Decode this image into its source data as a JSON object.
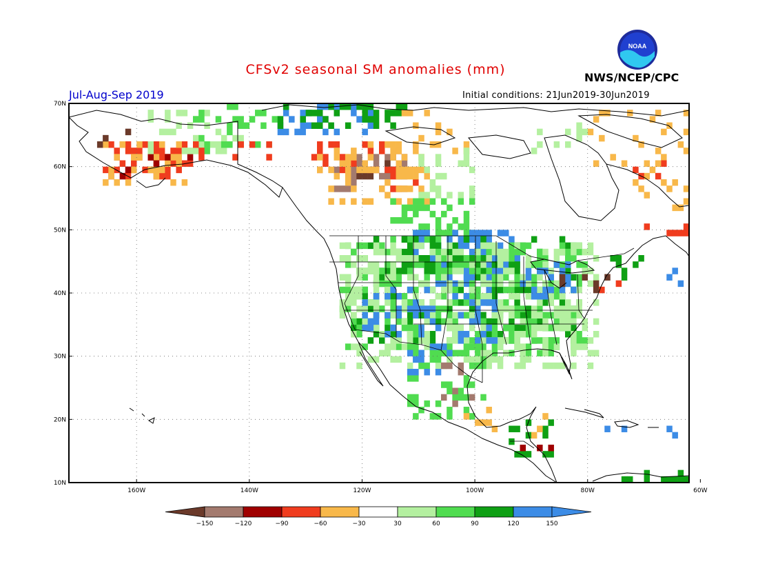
{
  "header": {
    "title": "CFSv2 seasonal SM anomalies (mm)",
    "period": "Jul-Aug-Sep 2019",
    "initial_conditions": "Initial conditions: 21Jun2019-30Jun2019",
    "agency": "NWS/NCEP/CPC",
    "logo_text": "NOAA"
  },
  "map": {
    "projection": "cylindrical equidistant",
    "lon_range": [
      -172,
      -62
    ],
    "lat_range": [
      10,
      70
    ],
    "lat_ticks": [
      {
        "value": 70,
        "label": "70N"
      },
      {
        "value": 60,
        "label": "60N"
      },
      {
        "value": 50,
        "label": "50N"
      },
      {
        "value": 40,
        "label": "40N"
      },
      {
        "value": 30,
        "label": "30N"
      },
      {
        "value": 20,
        "label": "20N"
      },
      {
        "value": 10,
        "label": "10N"
      }
    ],
    "lon_ticks": [
      {
        "value": -160,
        "label": "160W"
      },
      {
        "value": -140,
        "label": "140W"
      },
      {
        "value": -120,
        "label": "120W"
      },
      {
        "value": -100,
        "label": "100W"
      },
      {
        "value": -80,
        "label": "80W"
      },
      {
        "value": -60,
        "label": "60W"
      }
    ],
    "grid": "dotted"
  },
  "colorbar": {
    "boundaries": [
      "-150",
      "-120",
      "-90",
      "-60",
      "-30",
      "30",
      "60",
      "90",
      "120",
      "150"
    ],
    "colors": [
      "#6b3a2a",
      "#a37a6e",
      "#a00000",
      "#f03c1e",
      "#f8b84a",
      "#ffffff",
      "#b4f0a0",
      "#50dc50",
      "#0fa014",
      "#3c8ce6",
      "#3c8ce6"
    ]
  },
  "cell_colors": {
    "B": "#3c8ce6",
    "G": "#0fa014",
    "M": "#50dc50",
    "L": "#b4f0a0",
    "Y": "#f8b84a",
    "O": "#f03c1e",
    "R": "#a00000",
    "P": "#a37a6e",
    "D": "#6b3a2a"
  },
  "anomaly_regions": [
    {
      "lon": [
        -166,
        -150
      ],
      "lat": [
        58,
        64
      ],
      "code": "O",
      "density": 0.45
    },
    {
      "lon": [
        -166,
        -150
      ],
      "lat": [
        57,
        64
      ],
      "code": "Y",
      "density": 0.3
    },
    {
      "lon": [
        -164,
        -150
      ],
      "lat": [
        58,
        62
      ],
      "code": "R",
      "density": 0.15
    },
    {
      "lon": [
        -168,
        -160
      ],
      "lat": [
        63,
        67
      ],
      "code": "D",
      "density": 0.1
    },
    {
      "lon": [
        -160,
        -140
      ],
      "lat": [
        62,
        69
      ],
      "code": "L",
      "density": 0.25
    },
    {
      "lon": [
        -150,
        -135
      ],
      "lat": [
        62,
        70
      ],
      "code": "M",
      "density": 0.2
    },
    {
      "lon": [
        -150,
        -125
      ],
      "lat": [
        61,
        64
      ],
      "code": "O",
      "density": 0.2
    },
    {
      "lon": [
        -135,
        -118
      ],
      "lat": [
        65,
        70
      ],
      "code": "B",
      "density": 0.4
    },
    {
      "lon": [
        -135,
        -110
      ],
      "lat": [
        66,
        70
      ],
      "code": "G",
      "density": 0.25
    },
    {
      "lon": [
        -125,
        -112
      ],
      "lat": [
        56,
        62
      ],
      "code": "P",
      "density": 0.35
    },
    {
      "lon": [
        -124,
        -114
      ],
      "lat": [
        57,
        61
      ],
      "code": "D",
      "density": 0.25
    },
    {
      "lon": [
        -128,
        -110
      ],
      "lat": [
        55,
        64
      ],
      "code": "O",
      "density": 0.15
    },
    {
      "lon": [
        -128,
        -108
      ],
      "lat": [
        54,
        64
      ],
      "code": "Y",
      "density": 0.25
    },
    {
      "lon": [
        -115,
        -100
      ],
      "lat": [
        62,
        69
      ],
      "code": "Y",
      "density": 0.15
    },
    {
      "lon": [
        -110,
        -100
      ],
      "lat": [
        55,
        63
      ],
      "code": "L",
      "density": 0.3
    },
    {
      "lon": [
        -115,
        -100
      ],
      "lat": [
        48,
        55
      ],
      "code": "M",
      "density": 0.35
    },
    {
      "lon": [
        -112,
        -92
      ],
      "lat": [
        44,
        50
      ],
      "code": "B",
      "density": 0.6
    },
    {
      "lon": [
        -108,
        -90
      ],
      "lat": [
        40,
        47
      ],
      "code": "B",
      "density": 0.45
    },
    {
      "lon": [
        -122,
        -82
      ],
      "lat": [
        32,
        49
      ],
      "code": "G",
      "density": 0.3
    },
    {
      "lon": [
        -124,
        -80
      ],
      "lat": [
        30,
        48
      ],
      "code": "M",
      "density": 0.35
    },
    {
      "lon": [
        -124,
        -78
      ],
      "lat": [
        28,
        48
      ],
      "code": "L",
      "density": 0.3
    },
    {
      "lon": [
        -120,
        -106
      ],
      "lat": [
        33,
        41
      ],
      "code": "B",
      "density": 0.25
    },
    {
      "lon": [
        -104,
        -96
      ],
      "lat": [
        32,
        40
      ],
      "code": "B",
      "density": 0.25
    },
    {
      "lon": [
        -92,
        -82
      ],
      "lat": [
        39,
        45
      ],
      "code": "B",
      "density": 0.3
    },
    {
      "lon": [
        -112,
        -98
      ],
      "lat": [
        20,
        32
      ],
      "code": "M",
      "density": 0.35
    },
    {
      "lon": [
        -112,
        -104
      ],
      "lat": [
        27,
        32
      ],
      "code": "B",
      "density": 0.25
    },
    {
      "lon": [
        -106,
        -100
      ],
      "lat": [
        22,
        29
      ],
      "code": "P",
      "density": 0.15
    },
    {
      "lon": [
        -102,
        -96
      ],
      "lat": [
        17,
        22
      ],
      "code": "Y",
      "density": 0.2
    },
    {
      "lon": [
        -94,
        -86
      ],
      "lat": [
        14,
        20
      ],
      "code": "G",
      "density": 0.25
    },
    {
      "lon": [
        -90,
        -86
      ],
      "lat": [
        17,
        21
      ],
      "code": "Y",
      "density": 0.3
    },
    {
      "lon": [
        -94,
        -86
      ],
      "lat": [
        14,
        16
      ],
      "code": "R",
      "density": 0.15
    },
    {
      "lon": [
        -86,
        -74
      ],
      "lat": [
        40,
        43
      ],
      "code": "D",
      "density": 0.2
    },
    {
      "lon": [
        -80,
        -74
      ],
      "lat": [
        40,
        43
      ],
      "code": "O",
      "density": 0.15
    },
    {
      "lon": [
        -70,
        -62
      ],
      "lat": [
        49,
        51
      ],
      "code": "O",
      "density": 0.5
    },
    {
      "lon": [
        -72,
        -62
      ],
      "lat": [
        53,
        62
      ],
      "code": "Y",
      "density": 0.15
    },
    {
      "lon": [
        -74,
        -62
      ],
      "lat": [
        58,
        61
      ],
      "code": "O",
      "density": 0.2
    },
    {
      "lon": [
        -80,
        -62
      ],
      "lat": [
        60,
        69
      ],
      "code": "Y",
      "density": 0.08
    },
    {
      "lon": [
        -90,
        -80
      ],
      "lat": [
        62,
        68
      ],
      "code": "L",
      "density": 0.15
    },
    {
      "lon": [
        -78,
        -64
      ],
      "lat": [
        17,
        19
      ],
      "code": "B",
      "density": 0.3
    },
    {
      "lon": [
        -75,
        -62
      ],
      "lat": [
        10,
        12
      ],
      "code": "G",
      "density": 0.4
    },
    {
      "lon": [
        -76,
        -70
      ],
      "lat": [
        42,
        46
      ],
      "code": "G",
      "density": 0.2
    },
    {
      "lon": [
        -66,
        -62
      ],
      "lat": [
        41,
        45
      ],
      "code": "B",
      "density": 0.3
    }
  ]
}
